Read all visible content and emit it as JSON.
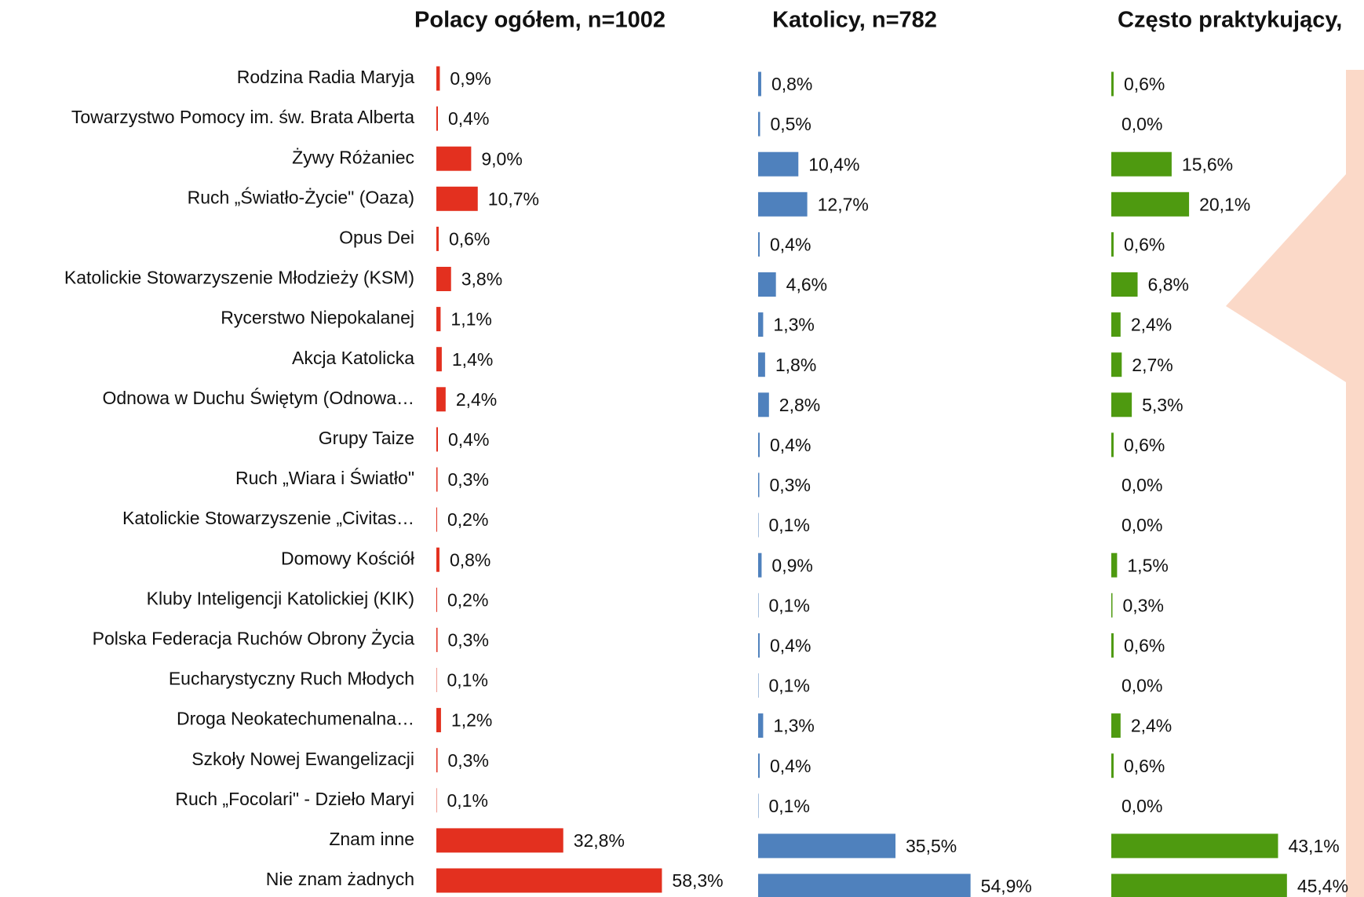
{
  "chart_data": [
    {
      "type": "bar",
      "title": "Polacy ogółem, n=1002",
      "color": "#e3301f",
      "categories": [
        "Rodzina Radia Maryja",
        "Towarzystwo Pomocy im. św. Brata Alberta",
        "Żywy Różaniec",
        "Ruch „Światło-Życie\" (Oaza)",
        "Opus Dei",
        "Katolickie Stowarzyszenie Młodzieży (KSM)",
        "Rycerstwo Niepokalanej",
        "Akcja Katolicka",
        "Odnowa w Duchu Świętym (Odnowa…",
        "Grupy Taize",
        "Ruch „Wiara i Światło\"",
        "Katolickie Stowarzyszenie „Civitas…",
        "Domowy Kościół",
        "Kluby Inteligencji Katolickiej (KIK)",
        "Polska Federacja Ruchów Obrony Życia",
        "Eucharystyczny Ruch Młodych",
        "Droga Neokatechumenalna…",
        "Szkoły Nowej Ewangelizacji",
        "Ruch „Focolari\" - Dzieło Maryi",
        "Znam inne",
        "Nie znam żadnych"
      ],
      "values": [
        0.9,
        0.4,
        9.0,
        10.7,
        0.6,
        3.8,
        1.1,
        1.4,
        2.4,
        0.4,
        0.3,
        0.2,
        0.8,
        0.2,
        0.3,
        0.1,
        1.2,
        0.3,
        0.1,
        32.8,
        58.3
      ],
      "value_labels": [
        "0,9%",
        "0,4%",
        "9,0%",
        "10,7%",
        "0,6%",
        "3,8%",
        "1,1%",
        "1,4%",
        "2,4%",
        "0,4%",
        "0,3%",
        "0,2%",
        "0,8%",
        "0,2%",
        "0,3%",
        "0,1%",
        "1,2%",
        "0,3%",
        "0,1%",
        "32,8%",
        "58,3%"
      ]
    },
    {
      "type": "bar",
      "title": "Katolicy, n=782",
      "color": "#4f81bd",
      "values": [
        0.8,
        0.5,
        10.4,
        12.7,
        0.4,
        4.6,
        1.3,
        1.8,
        2.8,
        0.4,
        0.3,
        0.1,
        0.9,
        0.1,
        0.4,
        0.1,
        1.3,
        0.4,
        0.1,
        35.5,
        54.9
      ],
      "value_labels": [
        "0,8%",
        "0,5%",
        "10,4%",
        "12,7%",
        "0,4%",
        "4,6%",
        "1,3%",
        "1,8%",
        "2,8%",
        "0,4%",
        "0,3%",
        "0,1%",
        "0,9%",
        "0,1%",
        "0,4%",
        "0,1%",
        "1,3%",
        "0,4%",
        "0,1%",
        "35,5%",
        "54,9%"
      ]
    },
    {
      "type": "bar",
      "title": "Często praktykujący,",
      "color": "#4e9a10",
      "values": [
        0.6,
        0.0,
        15.6,
        20.1,
        0.6,
        6.8,
        2.4,
        2.7,
        5.3,
        0.6,
        0.0,
        0.0,
        1.5,
        0.3,
        0.6,
        0.0,
        2.4,
        0.6,
        0.0,
        43.1,
        45.4
      ],
      "value_labels": [
        "0,6%",
        "0,0%",
        "15,6%",
        "20,1%",
        "0,6%",
        "6,8%",
        "2,4%",
        "2,7%",
        "5,3%",
        "0,6%",
        "0,0%",
        "0,0%",
        "1,5%",
        "0,3%",
        "0,6%",
        "0,0%",
        "2,4%",
        "0,6%",
        "0,0%",
        "43,1%",
        "45,4%"
      ]
    }
  ]
}
